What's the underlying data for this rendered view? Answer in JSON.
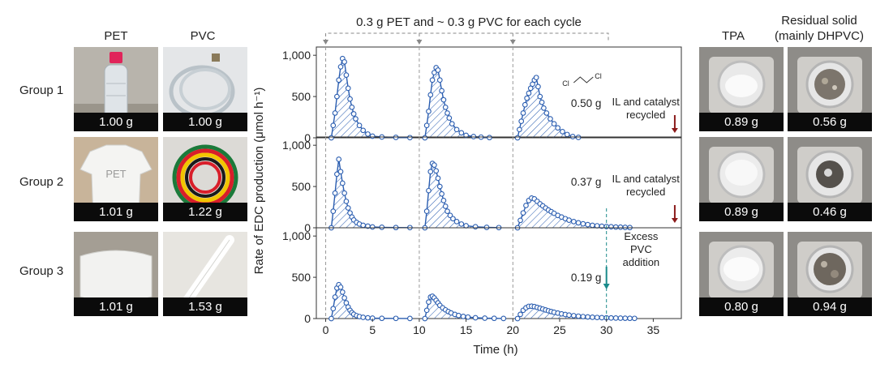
{
  "left_panel": {
    "headers": [
      "PET",
      "PVC"
    ],
    "groups": [
      {
        "label": "Group 1",
        "pet_mass": "1.00 g",
        "pvc_mass": "1.00 g"
      },
      {
        "label": "Group 2",
        "pet_mass": "1.01 g",
        "pvc_mass": "1.22 g"
      },
      {
        "label": "Group 3",
        "pet_mass": "1.01 g",
        "pvc_mass": "1.53 g"
      }
    ]
  },
  "right_panel": {
    "headers": [
      "TPA",
      "Residual solid",
      "(mainly DHPVC)"
    ],
    "rows": [
      {
        "tpa_mass": "0.89 g",
        "residual_mass": "0.56 g"
      },
      {
        "tpa_mass": "0.89 g",
        "residual_mass": "0.46 g"
      },
      {
        "tpa_mass": "0.80 g",
        "residual_mass": "0.94 g"
      }
    ]
  },
  "colors": {
    "series": "#2a5db0",
    "fill_hatch": "#2a5db0",
    "recycle_arrow": "#8b1a1a",
    "excess_arrow": "#1a8a8a"
  },
  "chart_data": {
    "type": "line",
    "title": "0.3 g PET and ~ 0.3 g PVC for each cycle",
    "xlabel": "Time (h)",
    "ylabel": "Rate of EDC production (μmol h⁻¹)",
    "xlim": [
      -1,
      38
    ],
    "x_ticks": [
      0,
      5,
      10,
      15,
      20,
      25,
      30,
      35
    ],
    "ylim": [
      0,
      1100
    ],
    "y_ticks": [
      0,
      500,
      1000
    ],
    "y_tick_labels": [
      "0",
      "500",
      "1,000"
    ],
    "cycle_starts": [
      0,
      10,
      20
    ],
    "structure_label": {
      "left": "Cl",
      "right": "Cl"
    },
    "panels": [
      {
        "name": "Group 1",
        "annotation_value": "0.50 g",
        "note": "IL and catalyst recycled",
        "cycles": [
          {
            "x": [
              0.6,
              0.8,
              1.0,
              1.2,
              1.4,
              1.6,
              1.8,
              2.0,
              2.2,
              2.4,
              2.6,
              2.8,
              3.0,
              3.2,
              3.6,
              4.0,
              4.5,
              5.0,
              6.0,
              7.5,
              9.0
            ],
            "y": [
              0,
              150,
              300,
              500,
              700,
              860,
              960,
              920,
              760,
              600,
              470,
              370,
              290,
              230,
              150,
              90,
              45,
              20,
              10,
              5,
              2
            ]
          },
          {
            "x": [
              10.6,
              10.8,
              11.0,
              11.2,
              11.4,
              11.6,
              11.8,
              12.0,
              12.2,
              12.4,
              12.6,
              12.8,
              13.0,
              13.2,
              13.5,
              14.0,
              14.5,
              15.0,
              15.8,
              16.6,
              17.5
            ],
            "y": [
              0,
              150,
              320,
              520,
              700,
              790,
              850,
              820,
              700,
              570,
              460,
              370,
              300,
              240,
              170,
              100,
              60,
              30,
              15,
              8,
              3
            ]
          },
          {
            "x": [
              20.5,
              20.7,
              20.9,
              21.1,
              21.3,
              21.5,
              21.7,
              21.9,
              22.1,
              22.3,
              22.5,
              22.7,
              22.9,
              23.1,
              23.3,
              23.6,
              24.0,
              24.4,
              24.8,
              25.3,
              25.8,
              26.4,
              27.0
            ],
            "y": [
              0,
              100,
              200,
              300,
              400,
              480,
              540,
              600,
              650,
              700,
              730,
              620,
              500,
              430,
              360,
              300,
              230,
              170,
              120,
              75,
              40,
              15,
              5
            ]
          }
        ]
      },
      {
        "name": "Group 2",
        "annotation_value": "0.37 g",
        "note": "IL and catalyst recycled",
        "cycles": [
          {
            "x": [
              0.6,
              0.8,
              1.0,
              1.2,
              1.4,
              1.6,
              1.8,
              2.0,
              2.2,
              2.4,
              2.6,
              2.8,
              3.0,
              3.3,
              3.6,
              4.0,
              4.5,
              5.0,
              6.0,
              7.5,
              9.0
            ],
            "y": [
              0,
              200,
              420,
              650,
              830,
              680,
              540,
              420,
              320,
              240,
              180,
              130,
              95,
              65,
              45,
              30,
              20,
              10,
              6,
              3,
              2
            ]
          },
          {
            "x": [
              10.6,
              10.8,
              11.0,
              11.2,
              11.4,
              11.6,
              11.8,
              12.0,
              12.2,
              12.4,
              12.6,
              12.8,
              13.0,
              13.3,
              13.6,
              14.0,
              14.5,
              15.0,
              16.0,
              17.2,
              18.5
            ],
            "y": [
              0,
              200,
              450,
              680,
              780,
              760,
              690,
              600,
              500,
              410,
              330,
              260,
              200,
              150,
              110,
              75,
              45,
              25,
              12,
              5,
              2
            ]
          },
          {
            "x": [
              20.5,
              20.8,
              21.1,
              21.4,
              21.7,
              22.0,
              22.3,
              22.6,
              22.9,
              23.2,
              23.5,
              23.8,
              24.1,
              24.4,
              24.8,
              25.2,
              25.6,
              26.0,
              26.5,
              27.0,
              27.5,
              28.0,
              28.5,
              29.0,
              29.5,
              30.0,
              30.5,
              31.0,
              31.5,
              32.0,
              32.5
            ],
            "y": [
              0,
              90,
              180,
              270,
              330,
              360,
              350,
              320,
              290,
              265,
              240,
              215,
              195,
              175,
              150,
              130,
              110,
              92,
              75,
              60,
              48,
              38,
              30,
              24,
              19,
              15,
              12,
              9,
              7,
              5,
              3
            ]
          }
        ]
      },
      {
        "name": "Group 3",
        "annotation_value": "0.19 g",
        "note": "Excess PVC addition",
        "cycles": [
          {
            "x": [
              0.6,
              0.8,
              1.0,
              1.2,
              1.4,
              1.6,
              1.8,
              2.0,
              2.2,
              2.4,
              2.6,
              2.8,
              3.0,
              3.3,
              3.6,
              4.0,
              4.5,
              5.0,
              6.0,
              7.5,
              9.0
            ],
            "y": [
              0,
              120,
              260,
              370,
              410,
              380,
              320,
              250,
              190,
              140,
              100,
              72,
              52,
              35,
              24,
              15,
              9,
              5,
              3,
              2,
              1
            ]
          },
          {
            "x": [
              10.6,
              10.8,
              11.0,
              11.2,
              11.4,
              11.6,
              11.8,
              12.0,
              12.2,
              12.5,
              12.8,
              13.1,
              13.4,
              13.8,
              14.2,
              14.7,
              15.2,
              16.0,
              17.0,
              18.0,
              19.0
            ],
            "y": [
              0,
              100,
              200,
              260,
              270,
              250,
              220,
              190,
              160,
              130,
              105,
              85,
              68,
              50,
              37,
              26,
              18,
              10,
              5,
              3,
              1
            ]
          },
          {
            "x": [
              20.5,
              20.8,
              21.1,
              21.4,
              21.7,
              22.0,
              22.3,
              22.6,
              22.9,
              23.2,
              23.5,
              23.8,
              24.1,
              24.4,
              24.8,
              25.2,
              25.6,
              26.0,
              26.5,
              27.0,
              27.5,
              28.0,
              28.5,
              29.0,
              29.5,
              30.0,
              30.5,
              31.0,
              31.5,
              32.0,
              32.5,
              33.0
            ],
            "y": [
              0,
              50,
              100,
              130,
              148,
              150,
              145,
              135,
              125,
              115,
              104,
              94,
              85,
              76,
              66,
              57,
              49,
              42,
              35,
              29,
              24,
              20,
              16,
              13,
              11,
              9,
              7,
              6,
              5,
              4,
              3,
              2
            ]
          }
        ]
      }
    ]
  }
}
